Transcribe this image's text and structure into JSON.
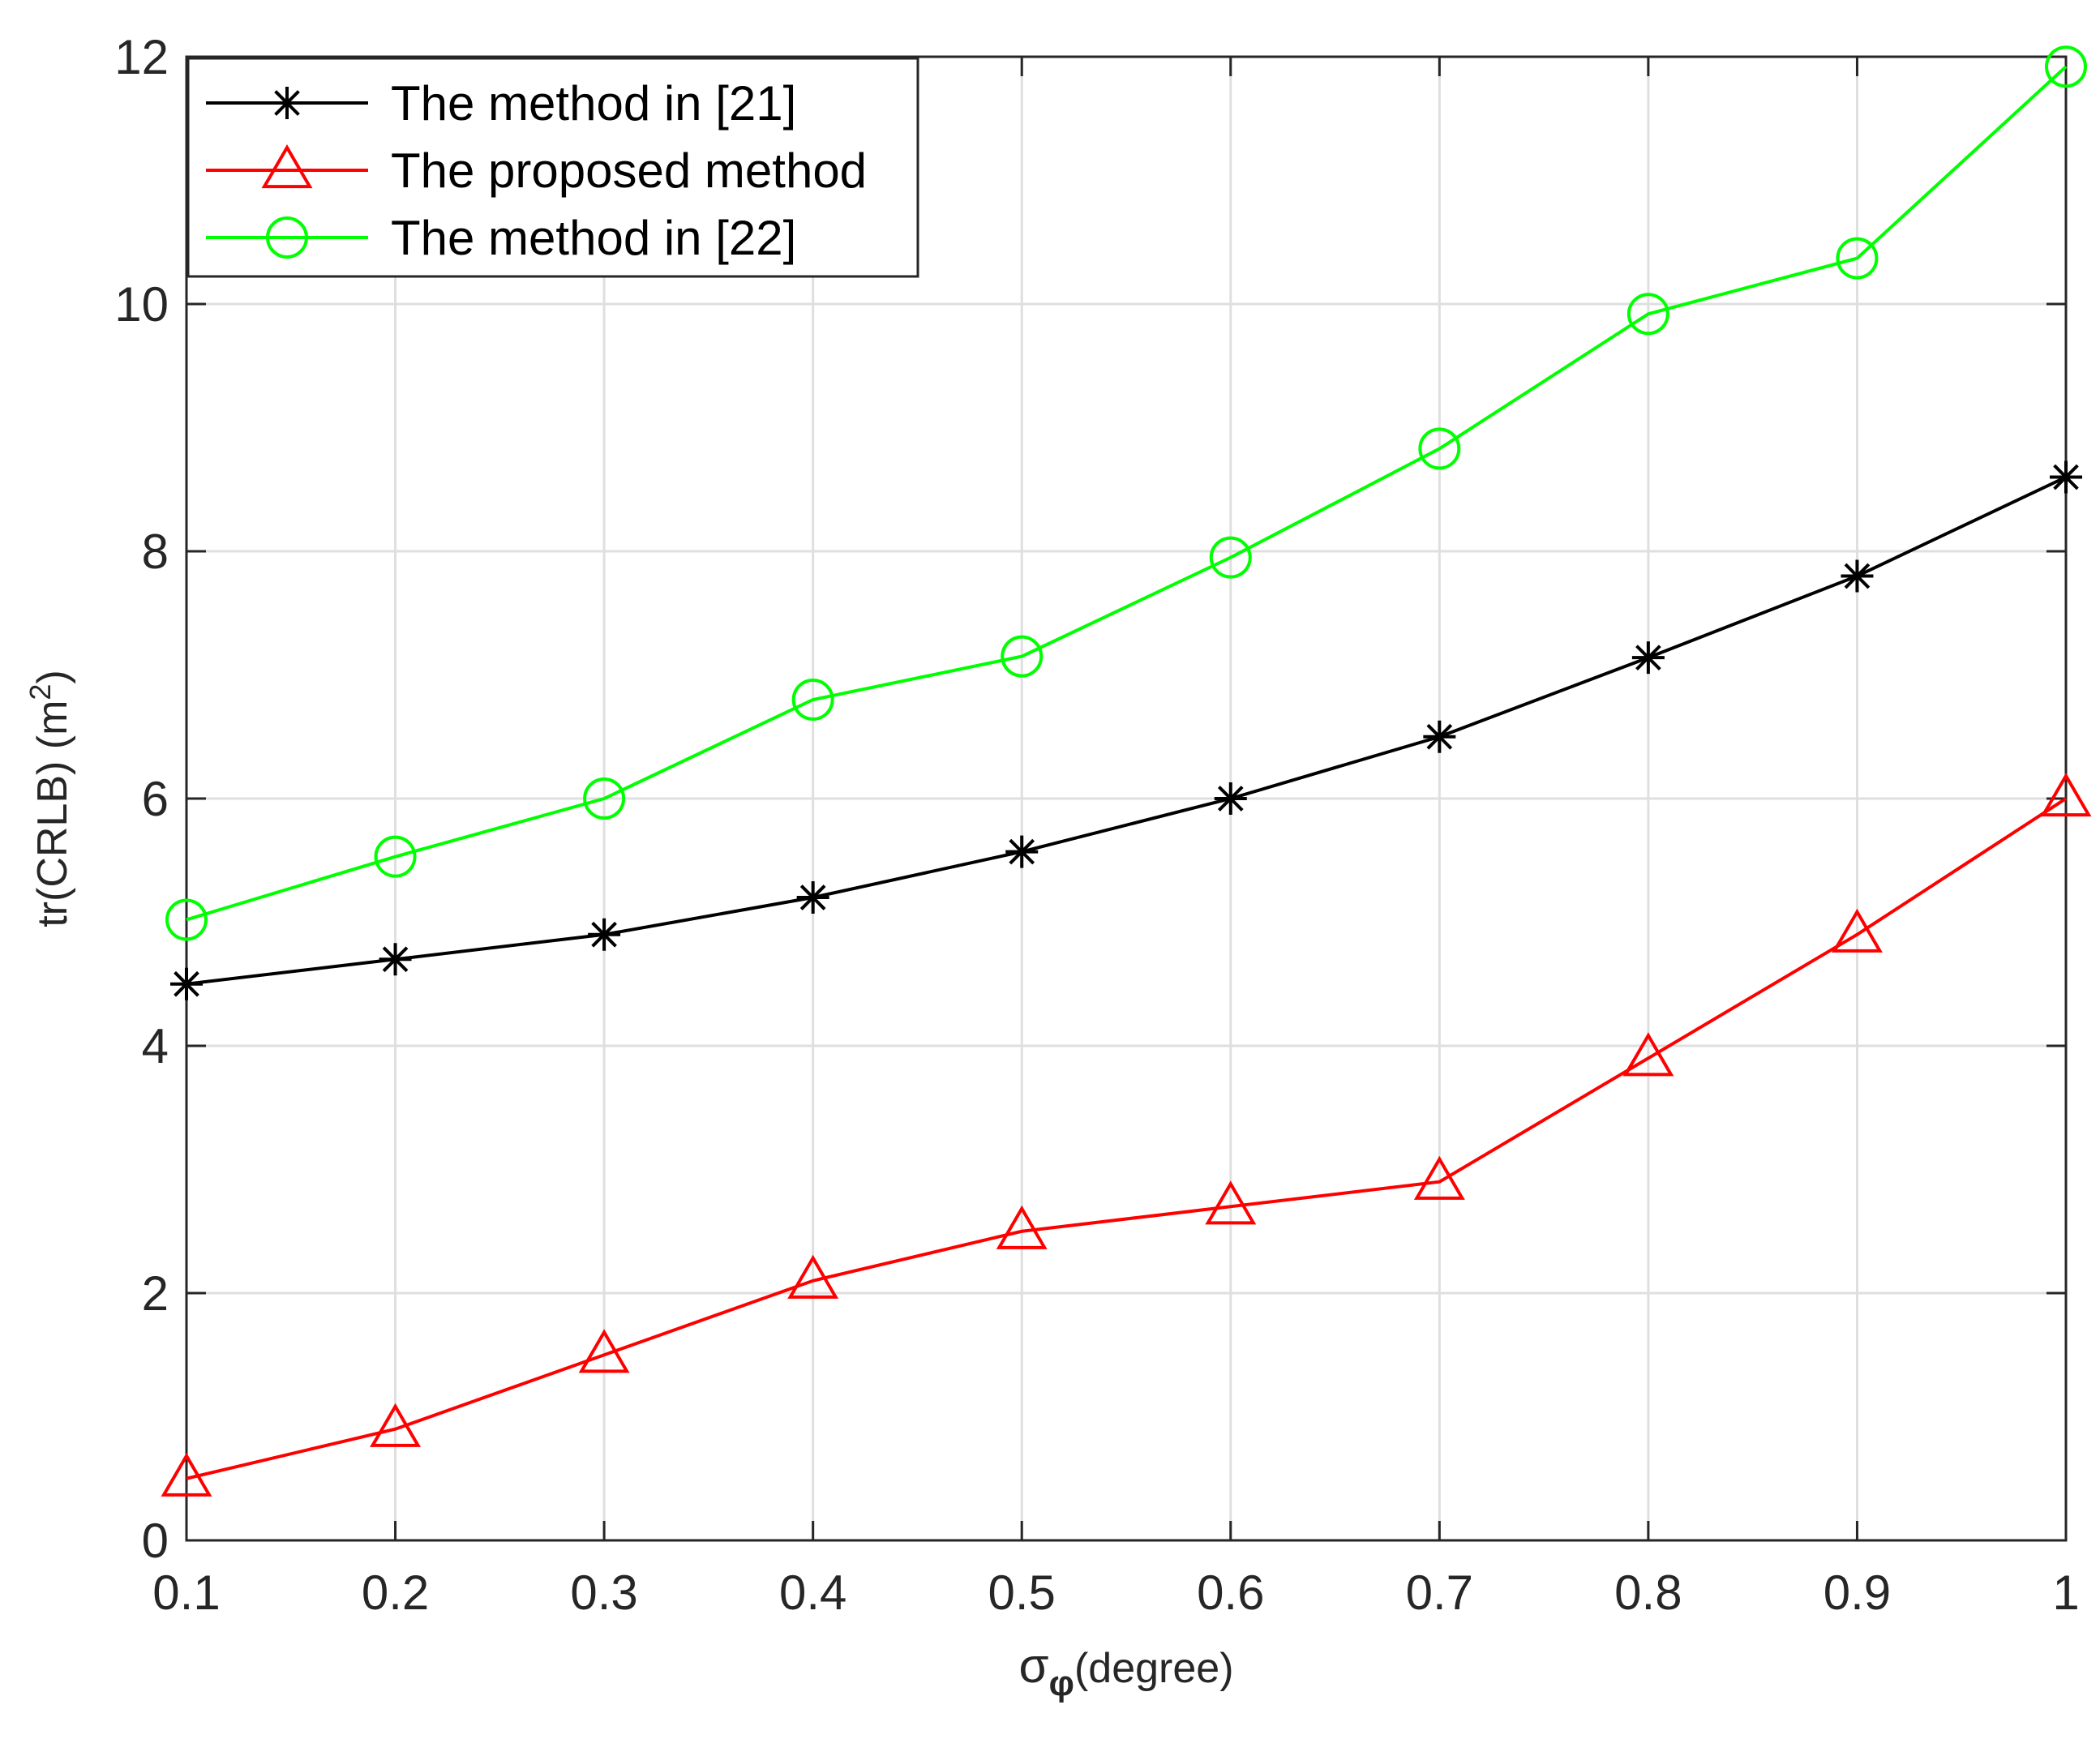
{
  "chart_data": {
    "type": "line",
    "title": "",
    "xlabel": {
      "main": "σ",
      "sub": "φ",
      "suffix": "(degree)"
    },
    "ylabel": {
      "main": "tr(CRLB) (m",
      "sup": "2",
      "suffix": ")"
    },
    "xlim": [
      0.1,
      1
    ],
    "ylim": [
      0,
      12
    ],
    "xticks": [
      0.1,
      0.2,
      0.3,
      0.4,
      0.5,
      0.6,
      0.7,
      0.8,
      0.9,
      1
    ],
    "xtick_labels": [
      "0.1",
      "0.2",
      "0.3",
      "0.4",
      "0.5",
      "0.6",
      "0.7",
      "0.8",
      "0.9",
      "1"
    ],
    "yticks": [
      0,
      2,
      4,
      6,
      8,
      10,
      12
    ],
    "ytick_labels": [
      "0",
      "2",
      "4",
      "6",
      "8",
      "10",
      "12"
    ],
    "grid": true,
    "legend_position": "top-left",
    "x": [
      0.1,
      0.2,
      0.3,
      0.4,
      0.5,
      0.6,
      0.7,
      0.8,
      0.9,
      1
    ],
    "series": [
      {
        "name": "The method in [21]",
        "color": "#000000",
        "marker": "asterisk",
        "values": [
          4.5,
          4.7,
          4.9,
          5.2,
          5.57,
          6.0,
          6.5,
          7.14,
          7.8,
          8.6
        ]
      },
      {
        "name": "The proposed method",
        "color": "#ff0000",
        "marker": "triangle",
        "values": [
          0.5,
          0.9,
          1.5,
          2.1,
          2.5,
          2.7,
          2.9,
          3.9,
          4.9,
          6.0
        ]
      },
      {
        "name": "The method in [22]",
        "color": "#00ff00",
        "marker": "circle",
        "values": [
          5.02,
          5.53,
          6.0,
          6.8,
          7.15,
          7.95,
          8.83,
          9.92,
          10.37,
          11.92
        ]
      }
    ]
  }
}
